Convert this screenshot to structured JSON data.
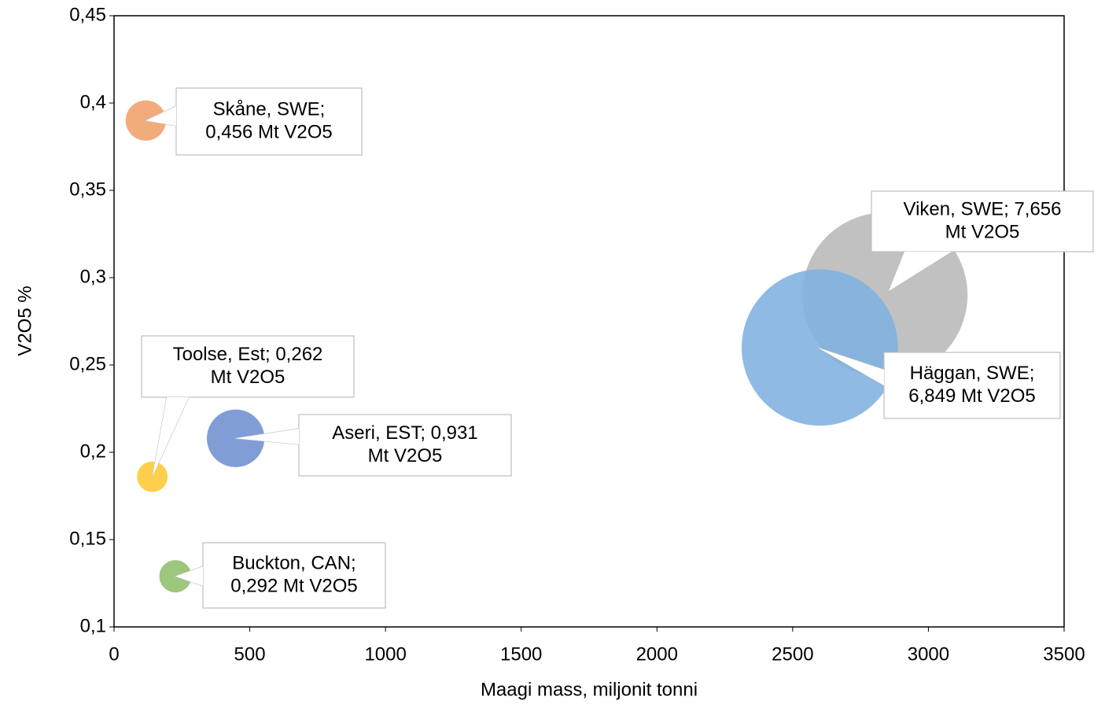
{
  "chart_data": {
    "type": "bubble",
    "x_label": "Maagi mass, miljonit tonni",
    "y_label": "V2O5 %",
    "x": [
      117,
      2840,
      2600,
      141,
      448,
      226
    ],
    "values": [
      0.39,
      0.29,
      0.26,
      0.186,
      0.208,
      0.129
    ],
    "sizes": [
      0.456,
      7.656,
      6.849,
      0.262,
      0.931,
      0.292
    ],
    "value_labels": [
      [
        "Skåne, SWE;",
        "0,456 Mt V2O5"
      ],
      [
        "Viken, SWE; 7,656",
        "Mt V2O5"
      ],
      [
        "Häggan, SWE;",
        "6,849 Mt V2O5"
      ],
      [
        "Toolse, Est; 0,262",
        "Mt V2O5"
      ],
      [
        "Aseri, EST; 0,931",
        "Mt V2O5"
      ],
      [
        "Buckton, CAN;",
        "0,292 Mt V2O5"
      ]
    ],
    "colors": [
      "#f0a06a",
      "#b8b8b8",
      "#7eb1e0",
      "#ffc833",
      "#6f8fd0",
      "#8fbf6a"
    ],
    "xlim": [
      0,
      3500
    ],
    "xticks": [
      0,
      500,
      1000,
      1500,
      2000,
      2500,
      3000,
      3500
    ],
    "ylim": [
      0.1,
      0.45
    ],
    "yticks": [
      {
        "value": 0.1,
        "label": "0,1"
      },
      {
        "value": 0.15,
        "label": "0,15"
      },
      {
        "value": 0.2,
        "label": "0,2"
      },
      {
        "value": 0.25,
        "label": "0,25"
      },
      {
        "value": 0.3,
        "label": "0,3"
      },
      {
        "value": 0.35,
        "label": "0,35"
      },
      {
        "value": 0.4,
        "label": "0,4"
      },
      {
        "value": 0.45,
        "label": "0,45"
      }
    ]
  }
}
